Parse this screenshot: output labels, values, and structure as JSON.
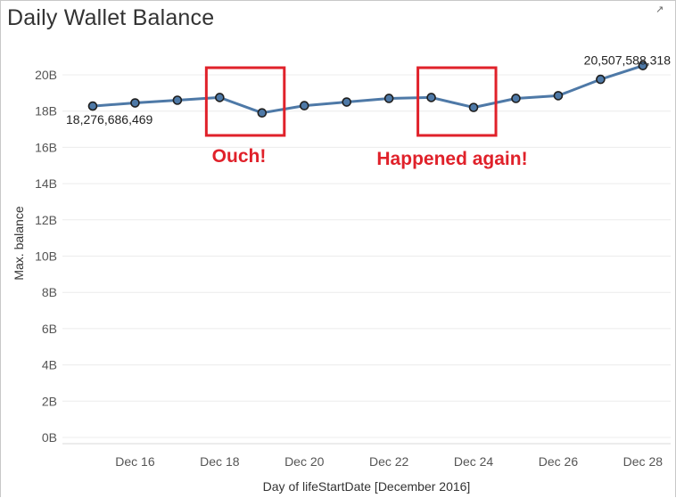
{
  "title": "Daily Wallet Balance",
  "chart_data": {
    "type": "line",
    "title": "Daily Wallet Balance",
    "xlabel": "Day of lifeStartDate [December 2016]",
    "ylabel": "Max. balance",
    "x": [
      "Dec 15",
      "Dec 16",
      "Dec 17",
      "Dec 18",
      "Dec 19",
      "Dec 20",
      "Dec 21",
      "Dec 22",
      "Dec 23",
      "Dec 24",
      "Dec 25",
      "Dec 26",
      "Dec 27",
      "Dec 28"
    ],
    "x_tick_labels": [
      "Dec 16",
      "Dec 18",
      "Dec 20",
      "Dec 22",
      "Dec 24",
      "Dec 26",
      "Dec 28"
    ],
    "y_tick_labels": [
      "0B",
      "2B",
      "4B",
      "6B",
      "8B",
      "10B",
      "12B",
      "14B",
      "16B",
      "18B",
      "20B"
    ],
    "ylim": [
      0,
      22000000000
    ],
    "series": [
      {
        "values": [
          18276686469,
          18450000000,
          18600000000,
          18750000000,
          17900000000,
          18300000000,
          18500000000,
          18700000000,
          18750000000,
          18200000000,
          18700000000,
          18850000000,
          19750000000,
          20507588318
        ]
      }
    ],
    "data_labels": [
      {
        "index": 0,
        "text": "18,276,686,469"
      },
      {
        "index": 13,
        "text": "20,507,588,318"
      }
    ],
    "annotations": [
      {
        "text": "Ouch!",
        "box_from": "Dec 18",
        "box_to": "Dec 19"
      },
      {
        "text": "Happened again!",
        "box_from": "Dec 23",
        "box_to": "Dec 24"
      }
    ],
    "grid": true,
    "line_color": "#4e79a7",
    "annotation_color": "#e0212a"
  }
}
